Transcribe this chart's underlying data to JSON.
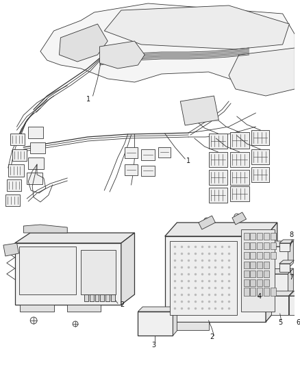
{
  "bg_color": "#ffffff",
  "line_color": "#333333",
  "fig_width": 4.38,
  "fig_height": 5.33,
  "dpi": 100,
  "label_fs": 7,
  "gray_fill": "#e8e8e8",
  "gray_dark": "#cccccc",
  "gray_mid": "#d8d8d8",
  "gray_light": "#f0f0f0"
}
